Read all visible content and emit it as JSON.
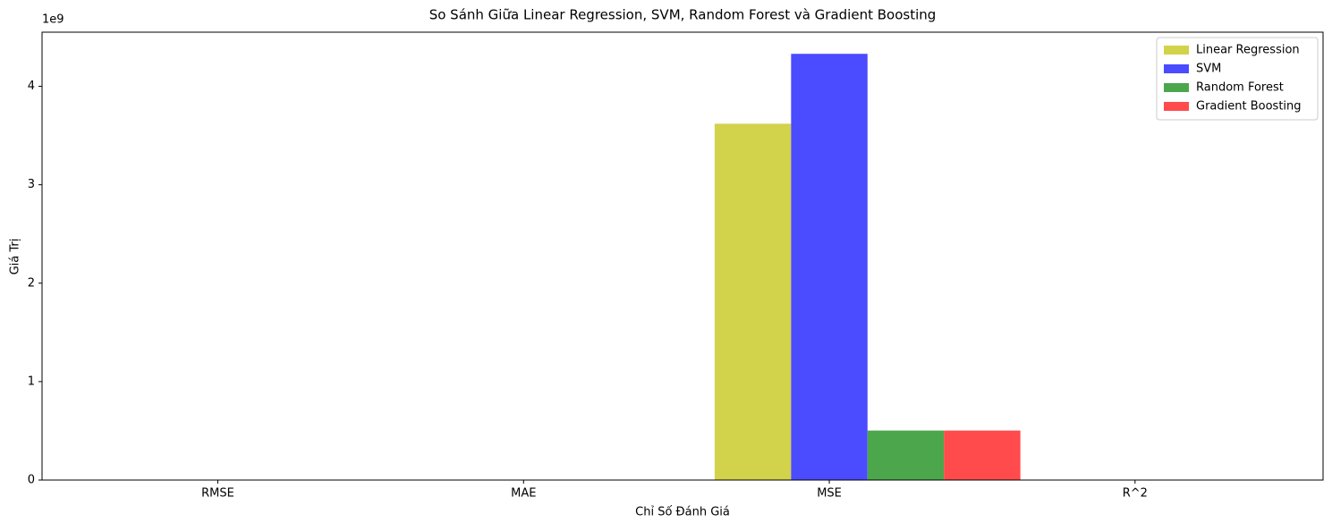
{
  "chart_data": {
    "type": "bar",
    "title": "So Sánh Giữa Linear Regression, SVM, Random Forest và Gradient Boosting",
    "x_label": "Chỉ Số Đánh Giá",
    "y_label": "Giá Trị",
    "y_offset_label": "1e9",
    "categories": [
      "RMSE",
      "MAE",
      "MSE",
      "R^2"
    ],
    "series": [
      {
        "name": "Linear Regression",
        "color": "#d2d24b",
        "values": [
          0,
          0,
          3.62,
          0
        ]
      },
      {
        "name": "SVM",
        "color": "#4b4bff",
        "values": [
          0,
          0,
          4.33,
          0
        ]
      },
      {
        "name": "Random Forest",
        "color": "#4ca64c",
        "values": [
          0,
          0,
          0.503,
          0
        ]
      },
      {
        "name": "Gradient Boosting",
        "color": "#ff4b4b",
        "values": [
          0,
          0,
          0.503,
          0
        ]
      }
    ],
    "ylim": [
      0,
      4.55
    ],
    "yticks": [
      0,
      1,
      2,
      3,
      4
    ],
    "legend": "upper-right"
  }
}
